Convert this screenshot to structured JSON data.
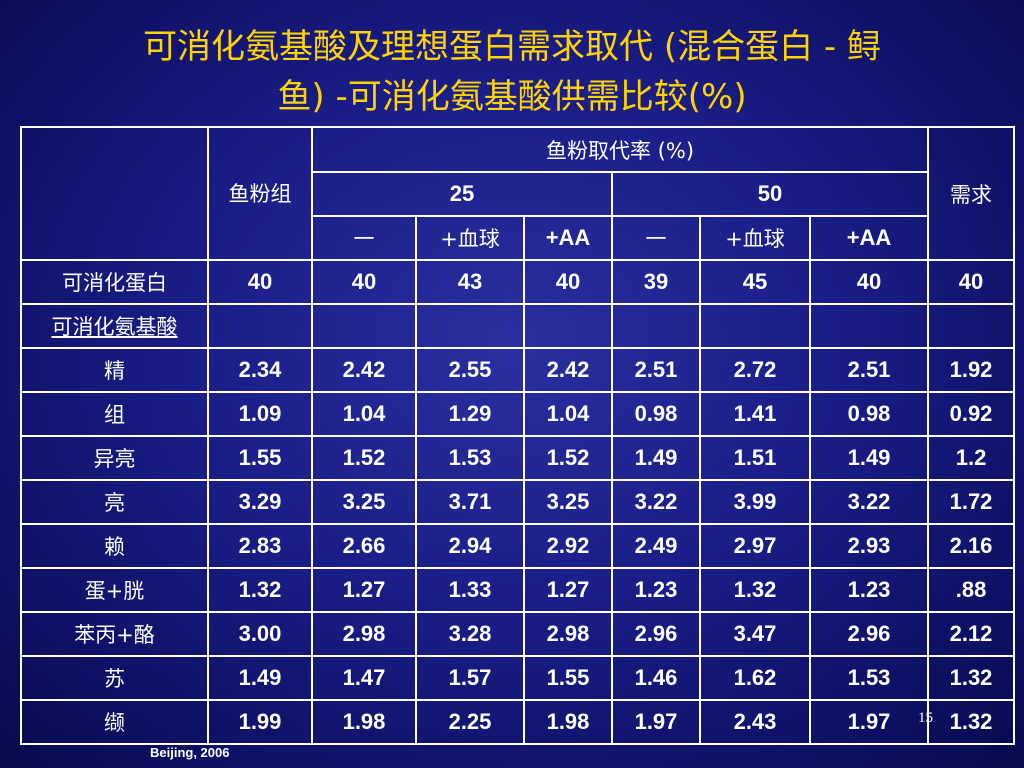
{
  "title": {
    "line1": "可消化氨基酸及理想蛋白需求取代 (混合蛋白 - 鲟",
    "line2": "鱼) -可消化氨基酸供需比较(%)"
  },
  "table": {
    "header": {
      "group_col": "鱼粉组",
      "replacement_rate": "鱼粉取代率 (%)",
      "demand": "需求",
      "level_25": "25",
      "level_50": "50",
      "sub_cols": [
        "一",
        "+血球",
        "+AA",
        "一",
        "+血球",
        "+AA"
      ]
    },
    "rows": [
      {
        "label": "可消化蛋白",
        "values": [
          "40",
          "40",
          "43",
          "40",
          "39",
          "45",
          "40",
          "40"
        ]
      },
      {
        "label": "可消化氨基酸",
        "values": [
          "",
          "",
          "",
          "",
          "",
          "",
          "",
          ""
        ]
      },
      {
        "label": "精",
        "values": [
          "2.34",
          "2.42",
          "2.55",
          "2.42",
          "2.51",
          "2.72",
          "2.51",
          "1.92"
        ]
      },
      {
        "label": "组",
        "values": [
          "1.09",
          "1.04",
          "1.29",
          "1.04",
          "0.98",
          "1.41",
          "0.98",
          "0.92"
        ]
      },
      {
        "label": "异亮",
        "values": [
          "1.55",
          "1.52",
          "1.53",
          "1.52",
          "1.49",
          "1.51",
          "1.49",
          "1.2"
        ]
      },
      {
        "label": "亮",
        "values": [
          "3.29",
          "3.25",
          "3.71",
          "3.25",
          "3.22",
          "3.99",
          "3.22",
          "1.72"
        ]
      },
      {
        "label": "赖",
        "values": [
          "2.83",
          "2.66",
          "2.94",
          "2.92",
          "2.49",
          "2.97",
          "2.93",
          "2.16"
        ]
      },
      {
        "label": "蛋+胱",
        "values": [
          "1.32",
          "1.27",
          "1.33",
          "1.27",
          "1.23",
          "1.32",
          "1.23",
          ".88"
        ]
      },
      {
        "label": "苯丙+酪",
        "values": [
          "3.00",
          "2.98",
          "3.28",
          "2.98",
          "2.96",
          "3.47",
          "2.96",
          "2.12"
        ]
      },
      {
        "label": "苏",
        "values": [
          "1.49",
          "1.47",
          "1.57",
          "1.55",
          "1.46",
          "1.62",
          "1.53",
          "1.32"
        ]
      },
      {
        "label": "缬",
        "values": [
          "1.99",
          "1.98",
          "2.25",
          "1.98",
          "1.97",
          "2.43",
          "1.97",
          "1.32"
        ]
      }
    ]
  },
  "page_number": "15",
  "footer": "Beijing, 2006",
  "colors": {
    "background": "#1a1d86",
    "title": "#ffd400",
    "text": "#ffffff",
    "grid": "#ffffff"
  }
}
